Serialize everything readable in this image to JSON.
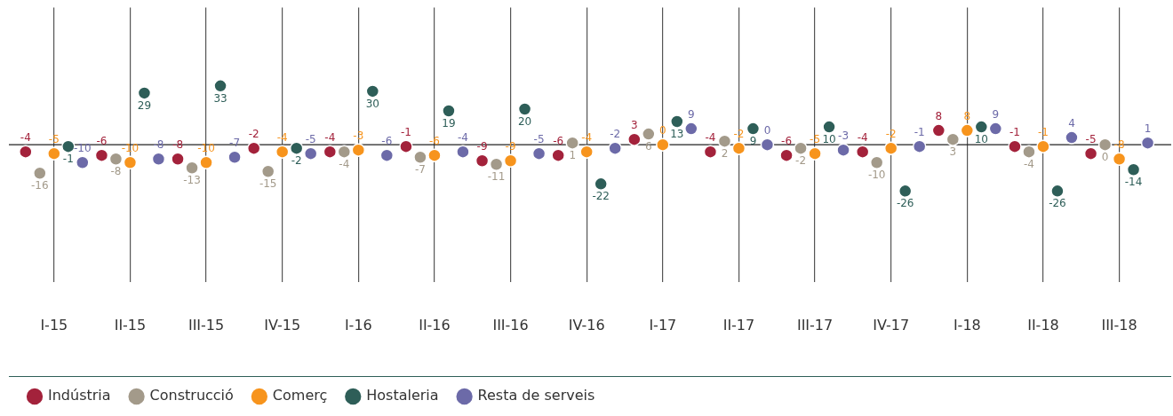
{
  "chart_data": {
    "type": "scatter",
    "categories": [
      "I-15",
      "II-15",
      "III-15",
      "IV-15",
      "I-16",
      "II-16",
      "III-16",
      "IV-16",
      "I-17",
      "II-17",
      "III-17",
      "IV-17",
      "I-18",
      "II-18",
      "III-18"
    ],
    "series": [
      {
        "name": "Indústria",
        "color": "#a3223b",
        "values": [
          -4,
          -6,
          -8,
          -2,
          -4,
          -1,
          -9,
          -6,
          3,
          -4,
          -6,
          -4,
          8,
          -1,
          -5
        ]
      },
      {
        "name": "Construcció",
        "color": "#a39a8a",
        "values": [
          -16,
          -8,
          -13,
          -15,
          -4,
          -7,
          -11,
          1,
          6,
          2,
          -2,
          -10,
          3,
          -4,
          0
        ]
      },
      {
        "name": "Comerç",
        "color": "#f7941d",
        "values": [
          -5,
          -10,
          -10,
          -4,
          -3,
          -6,
          -9,
          -4,
          0,
          -2,
          -5,
          -2,
          8,
          -1,
          -8
        ]
      },
      {
        "name": "Hostaleria",
        "color": "#2e5e58",
        "values": [
          -1,
          29,
          33,
          -2,
          30,
          19,
          20,
          -22,
          13,
          9,
          10,
          -26,
          10,
          -26,
          -14
        ]
      },
      {
        "name": "Resta de serveis",
        "color": "#6c6aa8",
        "values": [
          -10,
          -8,
          -7,
          -5,
          -6,
          -4,
          -5,
          -2,
          9,
          0,
          -3,
          -1,
          9,
          4,
          1
        ]
      }
    ],
    "ylim": [
      -77,
      77
    ],
    "ref_lines": [
      {
        "axis": "y",
        "value": 0
      }
    ],
    "grid": "x",
    "legend": "bottom left",
    "marker": "circle",
    "data_labels": true
  }
}
